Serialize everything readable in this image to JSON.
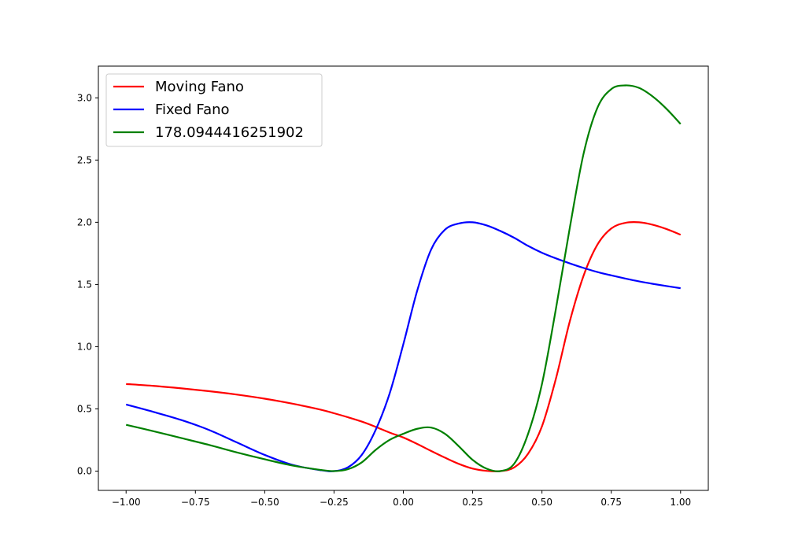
{
  "chart_data": {
    "type": "line",
    "title": "",
    "xlabel": "",
    "ylabel": "",
    "xlim": [
      -1.1,
      1.1
    ],
    "ylim": [
      -0.155,
      3.255
    ],
    "grid": false,
    "legend_position": "top-left",
    "x_ticks": [
      -1.0,
      -0.75,
      -0.5,
      -0.25,
      0.0,
      0.25,
      0.5,
      0.75,
      1.0
    ],
    "x_tick_labels": [
      "−1.00",
      "−0.75",
      "−0.50",
      "−0.25",
      "0.00",
      "0.25",
      "0.50",
      "0.75",
      "1.00"
    ],
    "y_ticks": [
      0.0,
      0.5,
      1.0,
      1.5,
      2.0,
      2.5,
      3.0
    ],
    "y_tick_labels": [
      "0.0",
      "0.5",
      "1.0",
      "1.5",
      "2.0",
      "2.5",
      "3.0"
    ],
    "x": [
      -1.0,
      -0.9,
      -0.8,
      -0.7,
      -0.6,
      -0.5,
      -0.4,
      -0.3,
      -0.25,
      -0.2,
      -0.15,
      -0.1,
      -0.05,
      0.0,
      0.05,
      0.1,
      0.15,
      0.2,
      0.25,
      0.3,
      0.35,
      0.4,
      0.45,
      0.5,
      0.55,
      0.6,
      0.65,
      0.7,
      0.75,
      0.8,
      0.85,
      0.9,
      0.95,
      1.0
    ],
    "series": [
      {
        "name": "Moving Fano",
        "color": "#ff0000",
        "values": [
          0.7,
          0.685,
          0.665,
          0.642,
          0.615,
          0.582,
          0.542,
          0.495,
          0.465,
          0.433,
          0.398,
          0.356,
          0.31,
          0.27,
          0.218,
          0.162,
          0.108,
          0.058,
          0.02,
          0.002,
          0.0,
          0.03,
          0.14,
          0.36,
          0.74,
          1.2,
          1.57,
          1.82,
          1.95,
          1.995,
          2.0,
          1.98,
          1.945,
          1.9
        ]
      },
      {
        "name": "Fixed Fano",
        "color": "#0000ff",
        "values": [
          0.535,
          0.475,
          0.41,
          0.33,
          0.23,
          0.13,
          0.05,
          0.008,
          0.0,
          0.03,
          0.13,
          0.33,
          0.62,
          1.02,
          1.45,
          1.78,
          1.94,
          1.99,
          2.0,
          1.975,
          1.93,
          1.875,
          1.81,
          1.755,
          1.71,
          1.67,
          1.633,
          1.6,
          1.573,
          1.548,
          1.525,
          1.505,
          1.487,
          1.47
        ]
      },
      {
        "name": "178.0944416251902",
        "color": "#008000",
        "values": [
          0.372,
          0.32,
          0.265,
          0.21,
          0.15,
          0.095,
          0.045,
          0.01,
          0.0,
          0.015,
          0.07,
          0.17,
          0.25,
          0.3,
          0.34,
          0.35,
          0.3,
          0.2,
          0.09,
          0.02,
          0.0,
          0.06,
          0.3,
          0.7,
          1.3,
          1.95,
          2.55,
          2.92,
          3.07,
          3.1,
          3.08,
          3.01,
          2.91,
          2.79
        ]
      }
    ]
  }
}
